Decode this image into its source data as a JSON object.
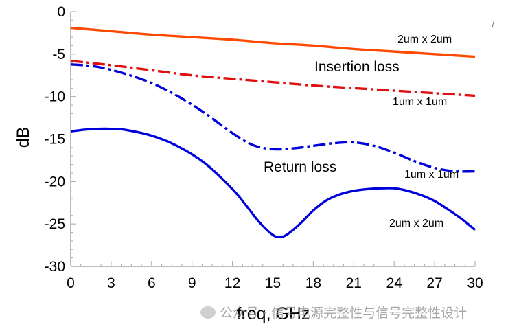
{
  "chart_data": {
    "type": "line",
    "xlabel": "freq, GHz",
    "ylabel": "dB",
    "xlim": [
      0,
      30
    ],
    "ylim": [
      -30,
      0
    ],
    "x_ticks": [
      0,
      3,
      6,
      9,
      12,
      15,
      18,
      21,
      24,
      27,
      30
    ],
    "y_ticks": [
      0,
      -5,
      -10,
      -15,
      -20,
      -25,
      -30
    ],
    "grid": false,
    "series": [
      {
        "name": "2um x 2um",
        "color": "#ff4a00",
        "style": "solid",
        "x": [
          0,
          3,
          6,
          9,
          12,
          15,
          18,
          21,
          24,
          27,
          30
        ],
        "y": [
          -1.9,
          -2.3,
          -2.7,
          -3.0,
          -3.3,
          -3.7,
          -4.0,
          -4.4,
          -4.7,
          -5.0,
          -5.3
        ]
      },
      {
        "name": "1um x 1um",
        "color": "#e01010",
        "style": "dashdot",
        "x": [
          0,
          3,
          6,
          9,
          12,
          15,
          18,
          21,
          24,
          27,
          30
        ],
        "y": [
          -5.8,
          -6.3,
          -6.9,
          -7.5,
          -7.9,
          -8.3,
          -8.7,
          -9.0,
          -9.3,
          -9.6,
          -9.9
        ]
      },
      {
        "name": "1um x 1um",
        "color": "#0000dd",
        "style": "dashdot",
        "x": [
          0,
          2,
          4,
          6,
          8,
          10,
          12,
          13.5,
          15,
          16.5,
          18,
          19.5,
          21,
          22.5,
          24,
          25.5,
          27,
          28.5,
          30
        ],
        "y": [
          -6.2,
          -6.5,
          -7.3,
          -8.4,
          -10.0,
          -12.0,
          -14.3,
          -15.7,
          -16.2,
          -16.1,
          -15.8,
          -15.5,
          -15.4,
          -15.8,
          -16.6,
          -17.6,
          -18.4,
          -18.8,
          -18.8
        ]
      },
      {
        "name": "2um x 2um",
        "color": "#0000dd",
        "style": "solid",
        "x": [
          0,
          1,
          2,
          3,
          4,
          6,
          8,
          10,
          12,
          13,
          14,
          15,
          15.5,
          16,
          17,
          18,
          19,
          20,
          21,
          22,
          23,
          24,
          25,
          26,
          27,
          28,
          29,
          30
        ],
        "y": [
          -14.1,
          -13.9,
          -13.8,
          -13.8,
          -13.9,
          -14.6,
          -15.9,
          -17.9,
          -20.9,
          -22.8,
          -24.8,
          -26.3,
          -26.5,
          -26.3,
          -25.0,
          -23.4,
          -22.2,
          -21.5,
          -21.1,
          -20.9,
          -20.8,
          -20.8,
          -21.1,
          -21.6,
          -22.3,
          -23.3,
          -24.4,
          -25.7
        ]
      }
    ],
    "annotations": [
      {
        "text": "Insertion loss"
      },
      {
        "text": "Return loss"
      },
      {
        "text": "2um x 2um"
      },
      {
        "text": "1um x 1um"
      },
      {
        "text": "1um x 1um"
      },
      {
        "text": "2um x 2um"
      }
    ]
  },
  "watermark": "公众号 · 信号电源完整性与信号完整性设计",
  "corner_mark": "/"
}
